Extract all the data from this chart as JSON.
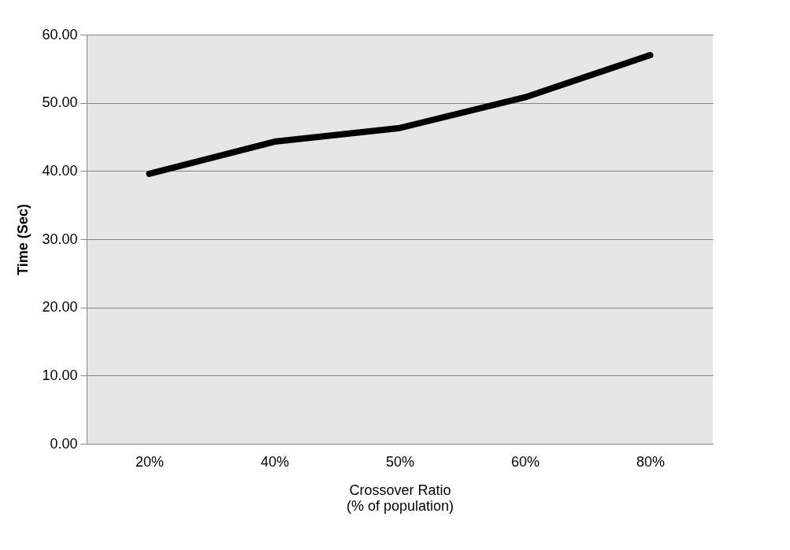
{
  "chart_data": {
    "type": "line",
    "categories": [
      "20%",
      "40%",
      "50%",
      "60%",
      "80%"
    ],
    "series": [
      {
        "color": "#000000",
        "values": [
          39.6,
          44.3,
          46.3,
          50.8,
          57.0
        ]
      }
    ],
    "xlabel": "Crossover Ratio\n(% of population)",
    "ylabel": "Time (Sec)",
    "ylim": [
      0,
      60
    ],
    "yticks": [
      {
        "value": 0,
        "label": "0.00"
      },
      {
        "value": 10,
        "label": "10.00"
      },
      {
        "value": 20,
        "label": "20.00"
      },
      {
        "value": 30,
        "label": "30.00"
      },
      {
        "value": 40,
        "label": "40.00"
      },
      {
        "value": 50,
        "label": "50.00"
      },
      {
        "value": 60,
        "label": "60.00"
      }
    ],
    "grid": "y",
    "marker": "none",
    "line_style": "solid"
  }
}
